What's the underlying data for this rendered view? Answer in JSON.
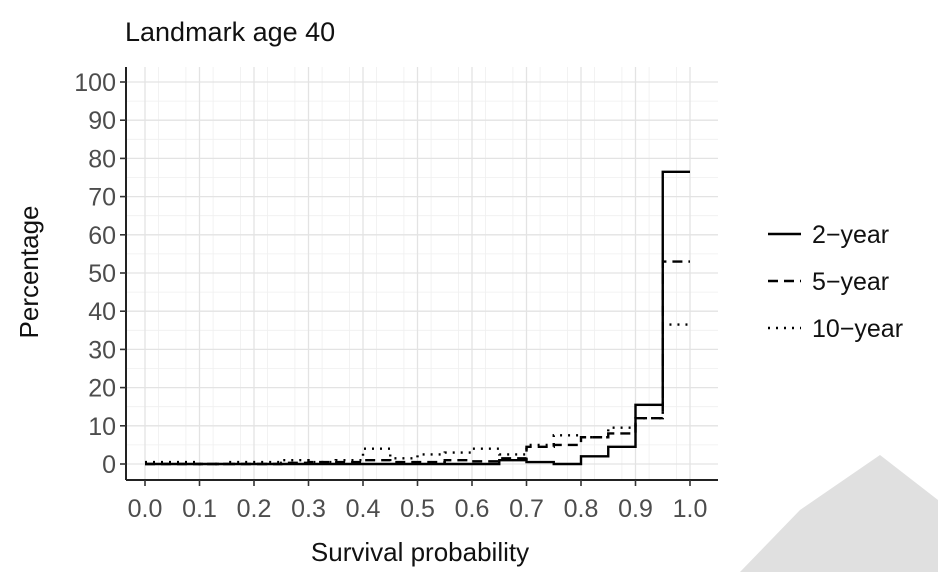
{
  "chart_data": {
    "type": "line",
    "step": true,
    "title": "Landmark age 40",
    "xlabel": "Survival probability",
    "ylabel": "Percentage",
    "xlim": [
      0,
      1
    ],
    "ylim": [
      0,
      100
    ],
    "xticks": [
      "0.0",
      "0.1",
      "0.2",
      "0.3",
      "0.4",
      "0.5",
      "0.6",
      "0.7",
      "0.8",
      "0.9",
      "1.0"
    ],
    "yticks": [
      "0",
      "10",
      "20",
      "30",
      "40",
      "50",
      "60",
      "70",
      "80",
      "90",
      "100"
    ],
    "grid": true,
    "legend_position": "right",
    "bin_edges": [
      0,
      0.05,
      0.1,
      0.15,
      0.2,
      0.25,
      0.3,
      0.35,
      0.4,
      0.45,
      0.5,
      0.55,
      0.6,
      0.65,
      0.7,
      0.75,
      0.8,
      0.85,
      0.9,
      0.95,
      1.0
    ],
    "series": [
      {
        "name": "2−year",
        "dash": "solid",
        "values": [
          0,
          0,
          0,
          0,
          0,
          0,
          0,
          0,
          0,
          0,
          0,
          0,
          0,
          1,
          0.5,
          0,
          2,
          4.5,
          15.5,
          76.5
        ]
      },
      {
        "name": "5−year",
        "dash": "dashed",
        "values": [
          0,
          0,
          0,
          0,
          0,
          0.3,
          0.5,
          0.5,
          1,
          0.5,
          0.5,
          1,
          0.7,
          1.5,
          4.5,
          5,
          7,
          8,
          12,
          53
        ]
      },
      {
        "name": "10−year",
        "dash": "dotted",
        "values": [
          0.5,
          0.5,
          0,
          0.5,
          0.5,
          1,
          0.5,
          1,
          4,
          1.5,
          2.5,
          3,
          4,
          2.5,
          5,
          7.5,
          7,
          9.5,
          12,
          36.5
        ]
      }
    ]
  }
}
